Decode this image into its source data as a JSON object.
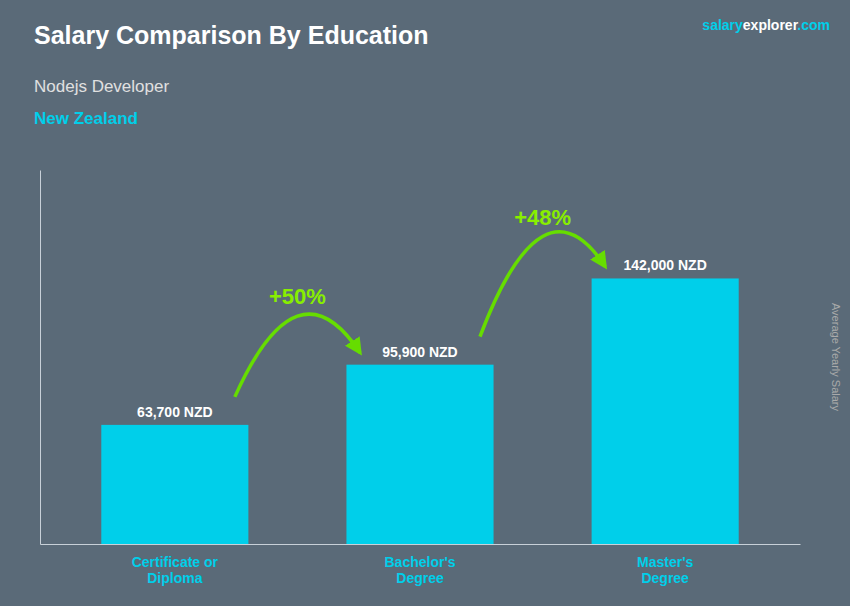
{
  "chart_data": {
    "type": "bar",
    "title": "Salary Comparison By Education",
    "subtitle": "Nodejs Developer",
    "country": "New Zealand",
    "source": [
      "salary",
      "explorer",
      ".com"
    ],
    "ylabel": "Average Yearly Salary",
    "categories": [
      "Certificate or\nDiploma",
      "Bachelor's\nDegree",
      "Master's\nDegree"
    ],
    "values": [
      63700,
      95900,
      142000
    ],
    "value_labels": [
      "63,700 NZD",
      "95,900 NZD",
      "142,000 NZD"
    ],
    "data_labels": true,
    "annotations": [
      "+50%",
      "+48%"
    ],
    "color": "#00cfea",
    "ylim": [
      0,
      200000
    ],
    "grid": false,
    "tick_labels": "x"
  }
}
